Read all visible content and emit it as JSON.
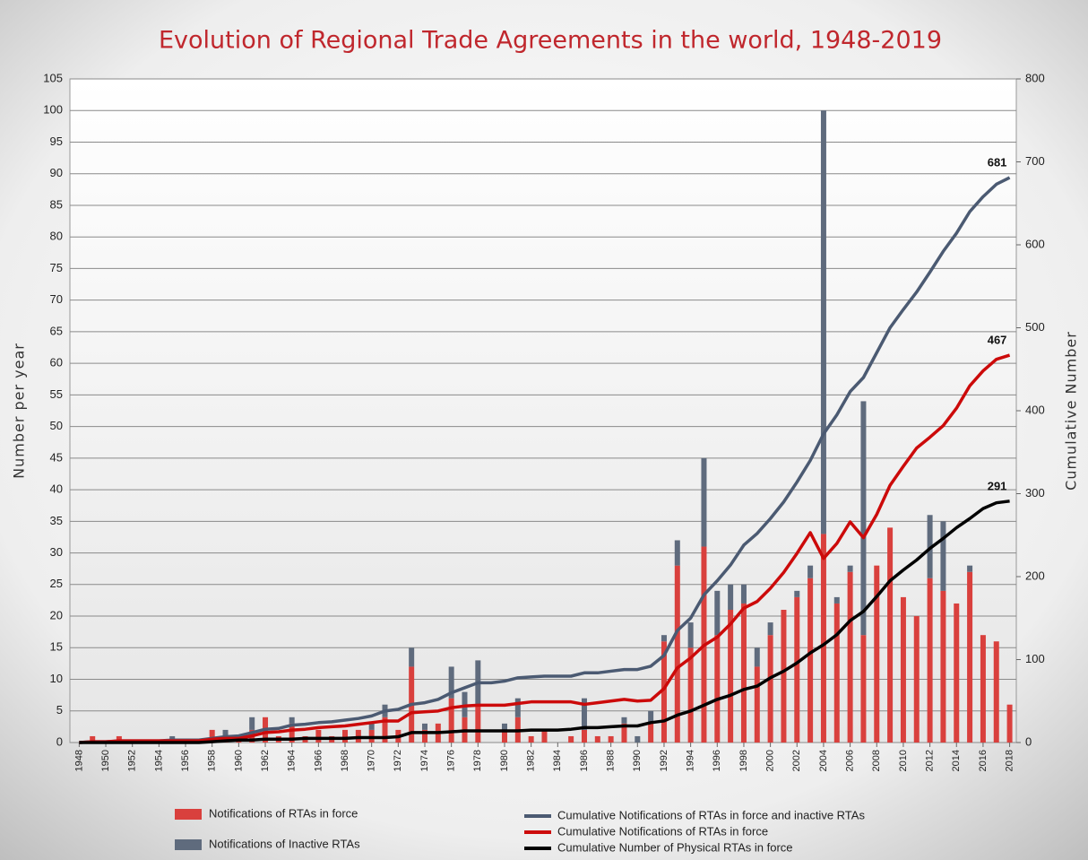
{
  "chart_data": {
    "type": "bar",
    "title": "Evolution of Regional Trade Agreements in the world, 1948-2019",
    "y_label": "Number per year",
    "y2_label": "Cumulative Number",
    "x": [
      1948,
      1949,
      1950,
      1951,
      1952,
      1953,
      1954,
      1955,
      1956,
      1957,
      1958,
      1959,
      1960,
      1961,
      1962,
      1963,
      1964,
      1965,
      1966,
      1967,
      1968,
      1969,
      1970,
      1971,
      1972,
      1973,
      1974,
      1975,
      1976,
      1977,
      1978,
      1979,
      1980,
      1981,
      1982,
      1983,
      1984,
      1985,
      1986,
      1987,
      1988,
      1989,
      1990,
      1991,
      1992,
      1993,
      1994,
      1995,
      1996,
      1997,
      1998,
      1999,
      2000,
      2001,
      2002,
      2003,
      2004,
      2005,
      2006,
      2007,
      2008,
      2009,
      2010,
      2011,
      2012,
      2013,
      2014,
      2015,
      2016,
      2017,
      2018
    ],
    "xlim": [
      1947.3,
      2018.5
    ],
    "xticks": [
      1948,
      1950,
      1952,
      1954,
      1956,
      1958,
      1960,
      1962,
      1964,
      1966,
      1968,
      1970,
      1972,
      1974,
      1976,
      1978,
      1980,
      1982,
      1984,
      1986,
      1988,
      1990,
      1992,
      1994,
      1996,
      1998,
      2000,
      2002,
      2004,
      2006,
      2008,
      2010,
      2012,
      2014,
      2016,
      2018
    ],
    "ylim": [
      0,
      105
    ],
    "yticks": [
      0,
      5,
      10,
      15,
      20,
      25,
      30,
      35,
      40,
      45,
      50,
      55,
      60,
      65,
      70,
      75,
      80,
      85,
      90,
      95,
      100,
      105
    ],
    "y2lim": [
      0,
      800
    ],
    "y2ticks": [
      0,
      100,
      200,
      300,
      400,
      500,
      600,
      700,
      800
    ],
    "grid": true,
    "series": [
      {
        "name": "Notifications of RTAs in force",
        "type": "bar",
        "stack": true,
        "color": "#d9403d",
        "values": [
          0,
          1,
          0,
          1,
          0,
          0,
          0,
          0,
          0,
          0,
          2,
          1,
          1,
          2,
          4,
          1,
          3,
          1,
          2,
          1,
          2,
          2,
          2,
          4,
          2,
          12,
          2,
          3,
          7,
          4,
          6,
          0,
          2,
          4,
          1,
          2,
          0,
          1,
          2,
          1,
          1,
          3,
          0,
          3,
          16,
          28,
          15,
          31,
          17,
          21,
          22,
          12,
          17,
          21,
          23,
          26,
          33,
          22,
          27,
          17,
          28,
          34,
          23,
          20,
          26,
          24,
          22,
          27,
          17,
          16,
          6
        ]
      },
      {
        "name": "Notifications of Inactive RTAs",
        "type": "bar",
        "stack": true,
        "color": "#5f6b7d",
        "values": [
          0,
          0,
          0,
          0,
          0,
          0,
          0,
          1,
          0,
          0,
          0,
          1,
          0,
          2,
          0,
          0,
          1,
          0,
          0,
          0,
          0,
          0,
          1,
          2,
          0,
          3,
          1,
          0,
          5,
          4,
          7,
          0,
          1,
          3,
          0,
          0,
          0,
          0,
          5,
          0,
          0,
          1,
          1,
          2,
          1,
          4,
          4,
          14,
          7,
          4,
          3,
          3,
          2,
          0,
          1,
          2,
          67,
          1,
          1,
          37,
          0,
          0,
          0,
          0,
          10,
          11,
          0,
          1,
          0,
          0,
          0
        ]
      },
      {
        "name": "Cumulative Notifications of RTAs in force and inactive RTAs",
        "type": "line",
        "axis": "y2",
        "color": "#4b5a72",
        "values": [
          0,
          1,
          1,
          2,
          2,
          2,
          2,
          3,
          3,
          3,
          5,
          7,
          8,
          12,
          16,
          17,
          21,
          22,
          24,
          25,
          27,
          29,
          32,
          38,
          40,
          46,
          48,
          52,
          60,
          66,
          72,
          72,
          74,
          78,
          79,
          80,
          80,
          80,
          84,
          84,
          86,
          88,
          88,
          92,
          105,
          135,
          150,
          178,
          195,
          214,
          238,
          252,
          270,
          290,
          314,
          340,
          372,
          395,
          423,
          440,
          470,
          500,
          522,
          543,
          567,
          592,
          614,
          640,
          658,
          673,
          681
        ]
      },
      {
        "name": "Cumulative Notifications of RTAs in force",
        "type": "line",
        "axis": "y2",
        "color": "#cc0a0a",
        "values": [
          0,
          1,
          1,
          2,
          2,
          2,
          2,
          2,
          2,
          2,
          4,
          5,
          5,
          8,
          12,
          13,
          15,
          16,
          18,
          19,
          20,
          22,
          24,
          26,
          26,
          36,
          37,
          38,
          42,
          44,
          45,
          45,
          45,
          47,
          49,
          49,
          49,
          49,
          46,
          48,
          50,
          52,
          50,
          51,
          65,
          90,
          102,
          117,
          127,
          143,
          162,
          170,
          186,
          205,
          228,
          253,
          222,
          240,
          266,
          247,
          275,
          310,
          333,
          355,
          368,
          382,
          403,
          430,
          448,
          462,
          467
        ]
      },
      {
        "name": "Cumulative Number of Physical RTAs in force",
        "type": "line",
        "axis": "y2",
        "color": "#000000",
        "values": [
          0,
          0,
          0,
          0,
          0,
          0,
          0,
          0,
          0,
          0,
          1,
          2,
          3,
          3,
          4,
          4,
          4,
          5,
          5,
          5,
          5,
          6,
          6,
          6,
          7,
          12,
          12,
          12,
          13,
          14,
          14,
          14,
          14,
          14,
          15,
          15,
          15,
          16,
          18,
          18,
          19,
          20,
          20,
          24,
          26,
          33,
          38,
          45,
          52,
          57,
          64,
          68,
          78,
          86,
          96,
          108,
          118,
          130,
          147,
          158,
          176,
          195,
          208,
          220,
          234,
          246,
          259,
          270,
          282,
          289,
          291
        ]
      }
    ]
  }
}
